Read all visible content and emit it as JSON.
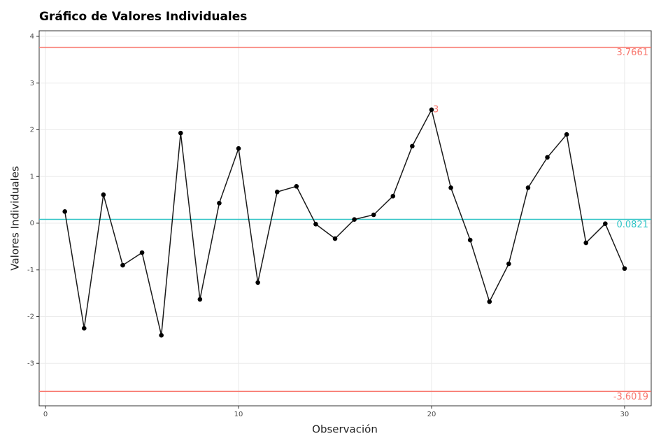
{
  "chart_data": {
    "type": "line",
    "title": "Gráfico de Valores Individuales",
    "xlabel": "Observación",
    "ylabel": "Valores Individuales",
    "x": [
      1,
      2,
      3,
      4,
      5,
      6,
      7,
      8,
      9,
      10,
      11,
      12,
      13,
      14,
      15,
      16,
      17,
      18,
      19,
      20,
      21,
      22,
      23,
      24,
      25,
      26,
      27,
      28,
      29,
      30
    ],
    "series": [
      {
        "color": "#1a1a1a",
        "values": [
          0.25,
          -2.25,
          0.61,
          -0.9,
          -0.63,
          -2.4,
          1.93,
          -1.63,
          0.43,
          1.6,
          -1.27,
          0.67,
          0.79,
          -0.02,
          -0.33,
          0.08,
          0.18,
          0.58,
          1.65,
          2.43,
          0.76,
          -0.36,
          -1.68,
          -0.87,
          0.76,
          1.41,
          1.9,
          -0.42,
          -0.01,
          -0.97
        ]
      }
    ],
    "hlines": [
      {
        "value": 3.7661,
        "color": "#f8766d"
      },
      {
        "value": 0.0821,
        "color": "#2ec4c6"
      },
      {
        "value": -3.6019,
        "color": "#f8766d"
      }
    ],
    "annotations": [
      {
        "text": "3",
        "x": 20,
        "y": 2.43,
        "color": "#f8766d"
      }
    ],
    "xlim": [
      -0.33,
      31.38
    ],
    "ylim": [
      -3.91,
      4.12
    ],
    "xticks": [
      0,
      10,
      20,
      30
    ],
    "yticks": [
      -3,
      -2,
      -1,
      0,
      1,
      2,
      3,
      4
    ],
    "grid": true
  }
}
